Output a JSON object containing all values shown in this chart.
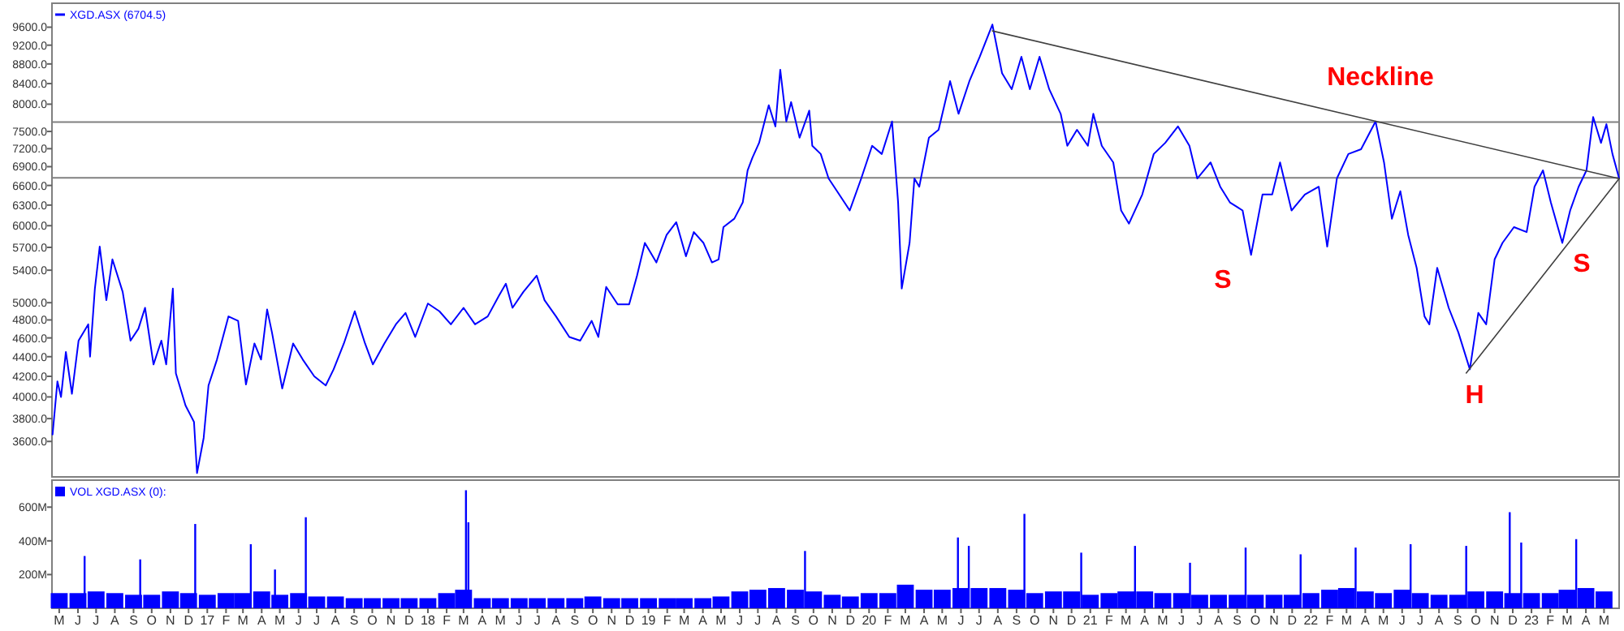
{
  "chart_data": [
    {
      "type": "line",
      "log": true,
      "legend": "top left",
      "tick_labels": "y",
      "xlim": [
        "2016-04-19",
        "2023-05-26"
      ],
      "ylim": [
        3310,
        10160
      ],
      "yticks": [
        {
          "value": 3600,
          "label": "3600.0"
        },
        {
          "value": 3800,
          "label": "3800.0"
        },
        {
          "value": 4000,
          "label": "4000.0"
        },
        {
          "value": 4200,
          "label": "4200.0"
        },
        {
          "value": 4400,
          "label": "4400.0"
        },
        {
          "value": 4600,
          "label": "4600.0"
        },
        {
          "value": 4800,
          "label": "4800.0"
        },
        {
          "value": 5000,
          "label": "5000.0"
        },
        {
          "value": 5400,
          "label": "5400.0"
        },
        {
          "value": 5700,
          "label": "5700.0"
        },
        {
          "value": 6000,
          "label": "6000.0"
        },
        {
          "value": 6300,
          "label": "6300.0"
        },
        {
          "value": 6600,
          "label": "6600.0"
        },
        {
          "value": 6900,
          "label": "6900.0"
        },
        {
          "value": 7200,
          "label": "7200.0"
        },
        {
          "value": 7500,
          "label": "7500.0"
        },
        {
          "value": 8000,
          "label": "8000.0"
        },
        {
          "value": 8400,
          "label": "8400.0"
        },
        {
          "value": 8800,
          "label": "8800.0"
        },
        {
          "value": 9200,
          "label": "9200.0"
        },
        {
          "value": 9600,
          "label": "9600.0"
        }
      ],
      "ref_lines": [
        {
          "axis": "y",
          "value": 7670,
          "color": "#808080"
        },
        {
          "axis": "y",
          "value": 6720,
          "color": "#808080"
        }
      ],
      "annotations": [
        "Neckline",
        "S",
        "H",
        "S"
      ],
      "series": [
        {
          "name": "XGD.ASX (6704.5)",
          "color": "#0000ff",
          "x": [
            "2016-04-20",
            "2016-04-28",
            "2016-05-04",
            "2016-05-12",
            "2016-05-22",
            "2016-06-02",
            "2016-06-18",
            "2016-06-21",
            "2016-06-29",
            "2016-07-07",
            "2016-07-18",
            "2016-07-28",
            "2016-08-14",
            "2016-08-27",
            "2016-09-09",
            "2016-09-20",
            "2016-10-04",
            "2016-10-17",
            "2016-10-25",
            "2016-11-05",
            "2016-11-10",
            "2016-11-26",
            "2016-12-10",
            "2016-12-15",
            "2016-12-26",
            "2017-01-03",
            "2017-01-17",
            "2017-02-05",
            "2017-02-21",
            "2017-03-06",
            "2017-03-20",
            "2017-03-31",
            "2017-04-10",
            "2017-04-18",
            "2017-05-05",
            "2017-05-23",
            "2017-06-08",
            "2017-06-27",
            "2017-07-16",
            "2017-07-29",
            "2017-08-15",
            "2017-09-02",
            "2017-09-19",
            "2017-10-02",
            "2017-10-21",
            "2017-11-09",
            "2017-11-25",
            "2017-12-11",
            "2018-01-01",
            "2018-01-20",
            "2018-02-08",
            "2018-03-01",
            "2018-03-20",
            "2018-04-10",
            "2018-04-29",
            "2018-05-10",
            "2018-05-21",
            "2018-06-08",
            "2018-06-30",
            "2018-07-13",
            "2018-08-01",
            "2018-08-23",
            "2018-09-10",
            "2018-09-29",
            "2018-10-10",
            "2018-10-23",
            "2018-11-11",
            "2018-11-30",
            "2018-12-13",
            "2018-12-26",
            "2019-01-14",
            "2019-01-31",
            "2019-02-16",
            "2019-03-04",
            "2019-03-17",
            "2019-04-02",
            "2019-04-16",
            "2019-04-27",
            "2019-05-05",
            "2019-05-23",
            "2019-06-06",
            "2019-06-14",
            "2019-06-22",
            "2019-07-03",
            "2019-07-19",
            "2019-07-30",
            "2019-08-07",
            "2019-08-17",
            "2019-08-25",
            "2019-09-08",
            "2019-09-24",
            "2019-09-29",
            "2019-10-13",
            "2019-10-26",
            "2019-11-09",
            "2019-11-30",
            "2019-12-19",
            "2020-01-06",
            "2020-01-22",
            "2020-02-08",
            "2020-02-18",
            "2020-02-24",
            "2020-03-08",
            "2020-03-16",
            "2020-03-24",
            "2020-04-09",
            "2020-04-25",
            "2020-05-14",
            "2020-05-28",
            "2020-06-15",
            "2020-07-02",
            "2020-07-23",
            "2020-08-08",
            "2020-08-24",
            "2020-09-09",
            "2020-09-23",
            "2020-10-09",
            "2020-10-25",
            "2020-11-13",
            "2020-11-24",
            "2020-12-10",
            "2020-12-28",
            "2021-01-06",
            "2021-01-20",
            "2021-02-08",
            "2021-02-21",
            "2021-03-06",
            "2021-03-28",
            "2021-04-16",
            "2021-05-05",
            "2021-05-26",
            "2021-06-14",
            "2021-06-27",
            "2021-07-19",
            "2021-08-04",
            "2021-08-20",
            "2021-09-10",
            "2021-09-24",
            "2021-10-13",
            "2021-10-29",
            "2021-11-11",
            "2021-11-30",
            "2021-12-22",
            "2022-01-14",
            "2022-01-28",
            "2022-02-13",
            "2022-03-04",
            "2022-03-25",
            "2022-04-18",
            "2022-05-02",
            "2022-05-15",
            "2022-05-29",
            "2022-06-11",
            "2022-06-25",
            "2022-07-08",
            "2022-07-16",
            "2022-07-29",
            "2022-08-17",
            "2022-09-02",
            "2022-09-21",
            "2022-10-05",
            "2022-10-18",
            "2022-11-01",
            "2022-11-14",
            "2022-12-03",
            "2022-12-24",
            "2023-01-06",
            "2023-01-20",
            "2023-02-02",
            "2023-02-21",
            "2023-03-06",
            "2023-03-20",
            "2023-04-02",
            "2023-04-13",
            "2023-04-26",
            "2023-05-05",
            "2023-05-15",
            "2023-05-26"
          ],
          "values": [
            3660,
            4150,
            4000,
            4450,
            4030,
            4570,
            4750,
            4400,
            5170,
            5710,
            5030,
            5540,
            5130,
            4570,
            4700,
            4940,
            4320,
            4570,
            4320,
            5170,
            4230,
            3920,
            3770,
            3340,
            3630,
            4110,
            4370,
            4840,
            4790,
            4120,
            4540,
            4370,
            4920,
            4660,
            4080,
            4540,
            4370,
            4200,
            4110,
            4270,
            4540,
            4900,
            4540,
            4320,
            4540,
            4750,
            4880,
            4610,
            4990,
            4900,
            4750,
            4940,
            4750,
            4840,
            5090,
            5230,
            4940,
            5130,
            5330,
            5030,
            4840,
            4610,
            4570,
            4790,
            4610,
            5190,
            4980,
            4980,
            5330,
            5760,
            5500,
            5870,
            6050,
            5580,
            5910,
            5760,
            5500,
            5540,
            5980,
            6100,
            6340,
            6840,
            7050,
            7300,
            7980,
            7590,
            8680,
            7680,
            8040,
            7390,
            7880,
            7250,
            7110,
            6710,
            6510,
            6220,
            6710,
            7250,
            7110,
            7680,
            6340,
            5170,
            5760,
            6710,
            6580,
            7390,
            7530,
            8450,
            7820,
            8450,
            8950,
            9660,
            8610,
            8290,
            8950,
            8290,
            8950,
            8290,
            7820,
            7250,
            7530,
            7250,
            7820,
            7250,
            6970,
            6220,
            6030,
            6460,
            7110,
            7300,
            7590,
            7250,
            6710,
            6970,
            6580,
            6340,
            6220,
            5600,
            6460,
            6460,
            6970,
            6220,
            6460,
            6580,
            5710,
            6710,
            7110,
            7190,
            7680,
            6970,
            6100,
            6510,
            5870,
            5430,
            4840,
            4750,
            5430,
            4940,
            4660,
            4270,
            4880,
            4750,
            5540,
            5760,
            5980,
            5910,
            6580,
            6840,
            6340,
            5760,
            6220,
            6580,
            6840,
            7760,
            7300,
            7630,
            7110,
            6710
          ]
        },
        {
          "type": "line",
          "color": "#404040",
          "x": [
            "2020-07-23",
            "2023-05-26"
          ],
          "values": [
            9516,
            6707
          ]
        },
        {
          "type": "line",
          "color": "#404040",
          "x": [
            "2022-09-15",
            "2023-05-26"
          ],
          "values": [
            4233,
            6707
          ]
        }
      ]
    },
    {
      "type": "bar",
      "legend": "top left",
      "xlim": [
        "2016-04-19",
        "2023-05-26"
      ],
      "ylim": [
        0,
        760
      ],
      "yticks": [
        {
          "value": 200,
          "label": "200M"
        },
        {
          "value": 400,
          "label": "400M"
        },
        {
          "value": 600,
          "label": "600M"
        }
      ],
      "xticks": [
        {
          "value": "2016-05-01",
          "label": "M"
        },
        {
          "value": "2016-06-01",
          "label": "J"
        },
        {
          "value": "2016-07-01",
          "label": "J"
        },
        {
          "value": "2016-08-01",
          "label": "A"
        },
        {
          "value": "2016-09-01",
          "label": "S"
        },
        {
          "value": "2016-10-01",
          "label": "O"
        },
        {
          "value": "2016-11-01",
          "label": "N"
        },
        {
          "value": "2016-12-01",
          "label": "D"
        },
        {
          "value": "2017-01-01",
          "label": "17"
        },
        {
          "value": "2017-02-01",
          "label": "F"
        },
        {
          "value": "2017-03-01",
          "label": "M"
        },
        {
          "value": "2017-04-01",
          "label": "A"
        },
        {
          "value": "2017-05-01",
          "label": "M"
        },
        {
          "value": "2017-06-01",
          "label": "J"
        },
        {
          "value": "2017-07-01",
          "label": "J"
        },
        {
          "value": "2017-08-01",
          "label": "A"
        },
        {
          "value": "2017-09-01",
          "label": "S"
        },
        {
          "value": "2017-10-01",
          "label": "O"
        },
        {
          "value": "2017-11-01",
          "label": "N"
        },
        {
          "value": "2017-12-01",
          "label": "D"
        },
        {
          "value": "2018-01-01",
          "label": "18"
        },
        {
          "value": "2018-02-01",
          "label": "F"
        },
        {
          "value": "2018-03-01",
          "label": "M"
        },
        {
          "value": "2018-04-01",
          "label": "A"
        },
        {
          "value": "2018-05-01",
          "label": "M"
        },
        {
          "value": "2018-06-01",
          "label": "J"
        },
        {
          "value": "2018-07-01",
          "label": "J"
        },
        {
          "value": "2018-08-01",
          "label": "A"
        },
        {
          "value": "2018-09-01",
          "label": "S"
        },
        {
          "value": "2018-10-01",
          "label": "O"
        },
        {
          "value": "2018-11-01",
          "label": "N"
        },
        {
          "value": "2018-12-01",
          "label": "D"
        },
        {
          "value": "2019-01-01",
          "label": "19"
        },
        {
          "value": "2019-02-01",
          "label": "F"
        },
        {
          "value": "2019-03-01",
          "label": "M"
        },
        {
          "value": "2019-04-01",
          "label": "A"
        },
        {
          "value": "2019-05-01",
          "label": "M"
        },
        {
          "value": "2019-06-01",
          "label": "J"
        },
        {
          "value": "2019-07-01",
          "label": "J"
        },
        {
          "value": "2019-08-01",
          "label": "A"
        },
        {
          "value": "2019-09-01",
          "label": "S"
        },
        {
          "value": "2019-10-01",
          "label": "O"
        },
        {
          "value": "2019-11-01",
          "label": "N"
        },
        {
          "value": "2019-12-01",
          "label": "D"
        },
        {
          "value": "2020-01-01",
          "label": "20"
        },
        {
          "value": "2020-02-01",
          "label": "F"
        },
        {
          "value": "2020-03-01",
          "label": "M"
        },
        {
          "value": "2020-04-01",
          "label": "A"
        },
        {
          "value": "2020-05-01",
          "label": "M"
        },
        {
          "value": "2020-06-01",
          "label": "J"
        },
        {
          "value": "2020-07-01",
          "label": "J"
        },
        {
          "value": "2020-08-01",
          "label": "A"
        },
        {
          "value": "2020-09-01",
          "label": "S"
        },
        {
          "value": "2020-10-01",
          "label": "O"
        },
        {
          "value": "2020-11-01",
          "label": "N"
        },
        {
          "value": "2020-12-01",
          "label": "D"
        },
        {
          "value": "2021-01-01",
          "label": "21"
        },
        {
          "value": "2021-02-01",
          "label": "F"
        },
        {
          "value": "2021-03-01",
          "label": "M"
        },
        {
          "value": "2021-04-01",
          "label": "A"
        },
        {
          "value": "2021-05-01",
          "label": "M"
        },
        {
          "value": "2021-06-01",
          "label": "J"
        },
        {
          "value": "2021-07-01",
          "label": "J"
        },
        {
          "value": "2021-08-01",
          "label": "A"
        },
        {
          "value": "2021-09-01",
          "label": "S"
        },
        {
          "value": "2021-10-01",
          "label": "O"
        },
        {
          "value": "2021-11-01",
          "label": "N"
        },
        {
          "value": "2021-12-01",
          "label": "D"
        },
        {
          "value": "2022-01-01",
          "label": "22"
        },
        {
          "value": "2022-02-01",
          "label": "F"
        },
        {
          "value": "2022-03-01",
          "label": "M"
        },
        {
          "value": "2022-04-01",
          "label": "A"
        },
        {
          "value": "2022-05-01",
          "label": "M"
        },
        {
          "value": "2022-06-01",
          "label": "J"
        },
        {
          "value": "2022-07-01",
          "label": "J"
        },
        {
          "value": "2022-08-01",
          "label": "A"
        },
        {
          "value": "2022-09-01",
          "label": "S"
        },
        {
          "value": "2022-10-01",
          "label": "O"
        },
        {
          "value": "2022-11-01",
          "label": "N"
        },
        {
          "value": "2022-12-01",
          "label": "D"
        },
        {
          "value": "2023-01-01",
          "label": "23"
        },
        {
          "value": "2023-02-01",
          "label": "F"
        },
        {
          "value": "2023-03-01",
          "label": "M"
        },
        {
          "value": "2023-04-01",
          "label": "A"
        },
        {
          "value": "2023-05-01",
          "label": "M"
        }
      ],
      "series": [
        {
          "name": "VOL XGD.ASX (0):",
          "color": "#0000ff",
          "x": [
            "2016-05-01",
            "2016-06-01",
            "2016-07-01",
            "2016-08-01",
            "2016-09-01",
            "2016-10-01",
            "2016-11-01",
            "2016-12-01",
            "2017-01-01",
            "2017-02-01",
            "2017-03-01",
            "2017-04-01",
            "2017-05-01",
            "2017-06-01",
            "2017-07-01",
            "2017-08-01",
            "2017-09-01",
            "2017-10-01",
            "2017-11-01",
            "2017-12-01",
            "2018-01-01",
            "2018-02-01",
            "2018-03-01",
            "2018-04-01",
            "2018-05-01",
            "2018-06-01",
            "2018-07-01",
            "2018-08-01",
            "2018-09-01",
            "2018-10-01",
            "2018-11-01",
            "2018-12-01",
            "2019-01-01",
            "2019-02-01",
            "2019-03-01",
            "2019-04-01",
            "2019-05-01",
            "2019-06-01",
            "2019-07-01",
            "2019-08-01",
            "2019-09-01",
            "2019-10-01",
            "2019-11-01",
            "2019-12-01",
            "2020-01-01",
            "2020-02-01",
            "2020-03-01",
            "2020-04-01",
            "2020-05-01",
            "2020-06-01",
            "2020-07-01",
            "2020-08-01",
            "2020-09-01",
            "2020-10-01",
            "2020-11-01",
            "2020-12-01",
            "2021-01-01",
            "2021-02-01",
            "2021-03-01",
            "2021-04-01",
            "2021-05-01",
            "2021-06-01",
            "2021-07-01",
            "2021-08-01",
            "2021-09-01",
            "2021-10-01",
            "2021-11-01",
            "2021-12-01",
            "2022-01-01",
            "2022-02-01",
            "2022-03-01",
            "2022-04-01",
            "2022-05-01",
            "2022-06-01",
            "2022-07-01",
            "2022-08-01",
            "2022-09-01",
            "2022-10-01",
            "2022-11-01",
            "2022-12-01",
            "2023-01-01",
            "2023-02-01",
            "2023-03-01",
            "2023-04-01",
            "2023-05-01"
          ],
          "values": [
            90,
            90,
            100,
            90,
            80,
            80,
            100,
            90,
            80,
            90,
            90,
            100,
            80,
            90,
            70,
            70,
            60,
            60,
            60,
            60,
            60,
            90,
            110,
            60,
            60,
            60,
            60,
            60,
            60,
            70,
            60,
            60,
            60,
            60,
            60,
            60,
            70,
            100,
            110,
            120,
            110,
            100,
            80,
            70,
            90,
            90,
            140,
            110,
            110,
            120,
            120,
            120,
            110,
            90,
            100,
            100,
            80,
            90,
            100,
            100,
            90,
            90,
            80,
            80,
            80,
            80,
            80,
            80,
            90,
            110,
            120,
            100,
            90,
            110,
            90,
            80,
            80,
            100,
            100,
            90,
            90,
            90,
            110,
            120,
            100
          ]
        },
        {
          "color": "#0000ff",
          "x": [
            "2016-06-12",
            "2016-09-12",
            "2016-12-12",
            "2017-03-14",
            "2017-04-23",
            "2017-06-13",
            "2018-03-05",
            "2018-03-09",
            "2019-09-17",
            "2020-05-27",
            "2020-06-14",
            "2020-09-14",
            "2020-12-17",
            "2021-03-16",
            "2021-06-15",
            "2021-09-15",
            "2021-12-15",
            "2022-03-16",
            "2022-06-15",
            "2022-09-15",
            "2022-11-26",
            "2022-12-15",
            "2023-03-16"
          ],
          "values": [
            310,
            290,
            500,
            380,
            230,
            540,
            700,
            510,
            340,
            420,
            370,
            560,
            330,
            370,
            270,
            360,
            320,
            360,
            380,
            370,
            570,
            390,
            410
          ]
        }
      ]
    }
  ]
}
